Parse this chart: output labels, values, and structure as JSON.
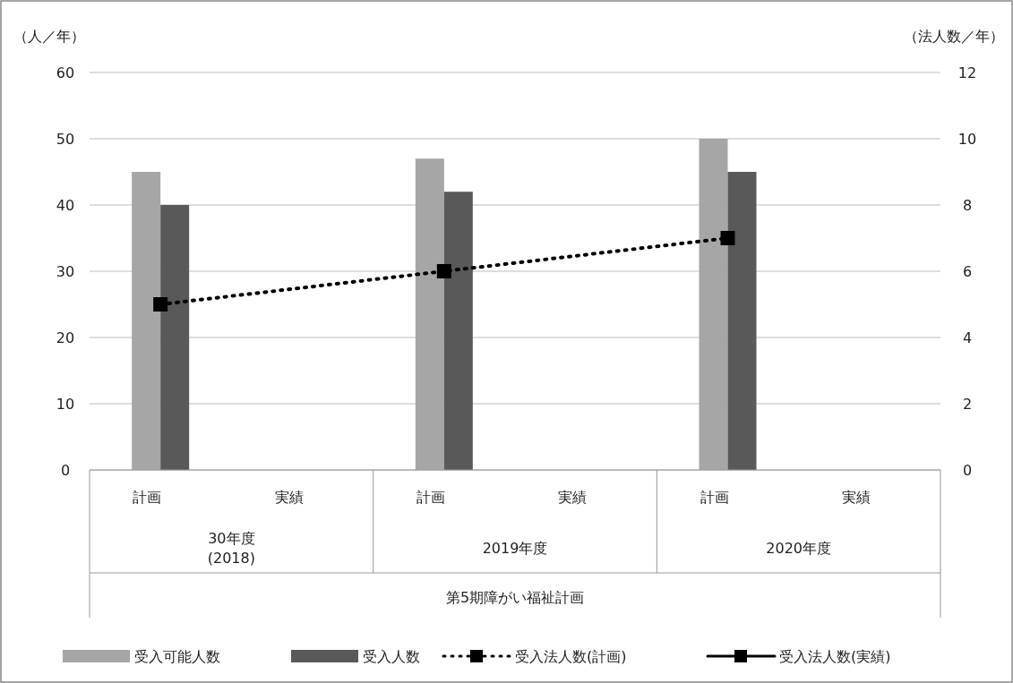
{
  "chart_data": {
    "type": "bar",
    "categories": [
      "計画",
      "実績",
      "計画",
      "実績",
      "計画",
      "実績"
    ],
    "series": [
      {
        "name": "受入可能人数",
        "color": "#a6a6a6",
        "values": [
          45,
          null,
          47,
          null,
          50,
          null
        ]
      },
      {
        "name": "受入人数",
        "color": "#595959",
        "values": [
          40,
          null,
          42,
          null,
          45,
          null
        ]
      },
      {
        "name": "受入法人数(計画)",
        "type": "line",
        "axis": "y2",
        "color": "#000000",
        "marker": "square",
        "line_style": "dotted",
        "values": [
          5,
          null,
          6,
          null,
          7,
          null
        ]
      },
      {
        "name": "受入法人数(実績)",
        "type": "line",
        "axis": "y2",
        "color": "#000000",
        "marker": "square",
        "line_style": "solid",
        "values": [
          null,
          null,
          null,
          null,
          null,
          null
        ]
      }
    ],
    "ylabel": "（人／年）",
    "y2label": "（法人数／年）",
    "ylim": [
      0,
      60
    ],
    "yticks": [
      0,
      10,
      20,
      30,
      40,
      50,
      60
    ],
    "y2lim": [
      0,
      12
    ],
    "y2ticks": [
      0,
      2,
      4,
      6,
      8,
      10,
      12
    ],
    "grid": "y",
    "legend": "bottom",
    "annotations": [
      "30年度\n(2018)",
      "2019年度",
      "2020年度",
      "第5期障がい福祉計画"
    ]
  }
}
